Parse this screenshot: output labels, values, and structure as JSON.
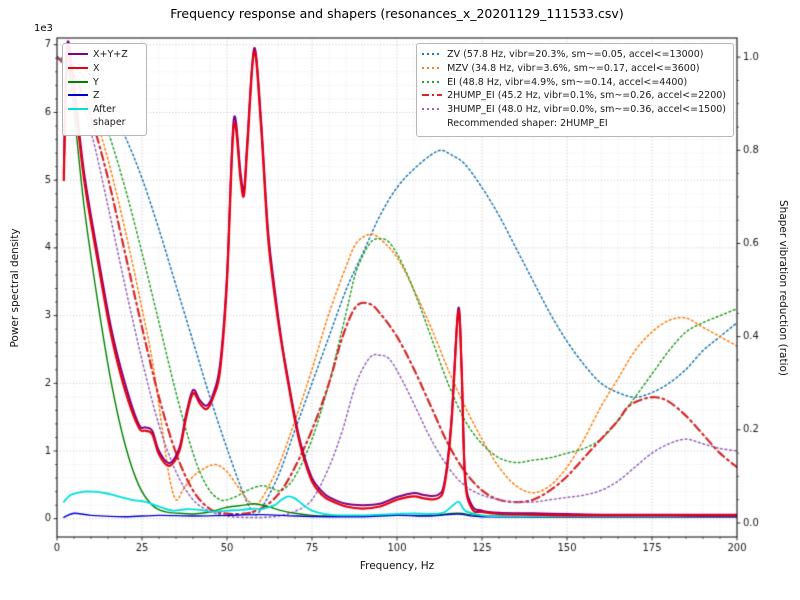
{
  "chart_data": {
    "type": "line",
    "title": "Frequency response and shapers (resonances_x_20201129_111533.csv)",
    "xlabel": "Frequency, Hz",
    "ylabel_left": "Power spectral density",
    "ylabel_right": "Shaper vibration reduction (ratio)",
    "y_left_offset": "1e3",
    "x_range": [
      0,
      200
    ],
    "y_left_range": [
      0,
      7
    ],
    "y_right_range": [
      0,
      1
    ],
    "x_ticks": [
      0,
      25,
      50,
      75,
      100,
      125,
      150,
      175,
      200
    ],
    "y_left_ticks": [
      0,
      1,
      2,
      3,
      4,
      5,
      6,
      7
    ],
    "y_right_ticks": [
      "0.0",
      "0.2",
      "0.4",
      "0.6",
      "0.8",
      "1.0"
    ],
    "grid": true,
    "legend_note": "Recommended shaper: 2HUMP_EI",
    "psd_series": [
      {
        "name": "X+Y+Z",
        "color": "#800080",
        "style": "solid",
        "width": 2,
        "x": [
          2,
          3,
          5,
          8,
          12,
          16,
          20,
          24,
          26,
          28,
          30,
          33,
          36,
          38,
          40,
          42,
          44,
          46,
          48,
          50,
          52,
          54,
          55,
          56,
          58,
          60,
          62,
          64,
          66,
          68,
          70,
          72,
          75,
          78,
          80,
          85,
          90,
          95,
          100,
          105,
          108,
          112,
          114,
          116,
          118,
          119,
          120,
          122,
          125,
          130,
          140,
          150,
          160,
          170,
          180,
          190,
          200
        ],
        "y": [
          5.1,
          7.0,
          6.4,
          5.1,
          3.9,
          2.8,
          2.0,
          1.4,
          1.35,
          1.3,
          1.0,
          0.82,
          1.05,
          1.55,
          1.9,
          1.75,
          1.67,
          1.85,
          2.3,
          3.6,
          5.9,
          5.1,
          4.85,
          5.6,
          6.95,
          5.9,
          4.3,
          3.4,
          2.65,
          2.05,
          1.5,
          1.05,
          0.6,
          0.4,
          0.32,
          0.22,
          0.2,
          0.22,
          0.32,
          0.38,
          0.35,
          0.35,
          0.55,
          1.45,
          3.1,
          2.25,
          0.65,
          0.2,
          0.12,
          0.09,
          0.08,
          0.07,
          0.06,
          0.06,
          0.06,
          0.06,
          0.06
        ]
      },
      {
        "name": "X",
        "color": "#e60012",
        "style": "solid",
        "width": 2.2,
        "x": [
          2,
          3,
          5,
          8,
          12,
          16,
          20,
          24,
          26,
          28,
          30,
          33,
          36,
          38,
          40,
          42,
          44,
          46,
          48,
          50,
          52,
          54,
          55,
          56,
          58,
          60,
          62,
          64,
          66,
          68,
          70,
          72,
          75,
          78,
          80,
          85,
          90,
          95,
          100,
          105,
          108,
          112,
          114,
          116,
          118,
          119,
          120,
          122,
          125,
          130,
          140,
          150,
          160,
          170,
          180,
          190,
          200
        ],
        "y": [
          5.0,
          6.9,
          6.3,
          5.0,
          3.8,
          2.7,
          1.9,
          1.35,
          1.3,
          1.25,
          0.95,
          0.78,
          1.0,
          1.5,
          1.85,
          1.7,
          1.62,
          1.8,
          2.2,
          3.5,
          5.8,
          5.0,
          4.78,
          5.5,
          6.9,
          5.8,
          4.2,
          3.3,
          2.6,
          2.0,
          1.45,
          1.0,
          0.55,
          0.35,
          0.28,
          0.18,
          0.15,
          0.18,
          0.28,
          0.33,
          0.3,
          0.3,
          0.5,
          1.4,
          3.05,
          2.2,
          0.6,
          0.15,
          0.1,
          0.07,
          0.06,
          0.05,
          0.05,
          0.05,
          0.05,
          0.05,
          0.05
        ]
      },
      {
        "name": "Y",
        "color": "#008000",
        "style": "solid",
        "width": 1.4,
        "x": [
          2,
          3,
          5,
          8,
          12,
          16,
          20,
          24,
          28,
          32,
          36,
          40,
          45,
          50,
          55,
          58,
          62,
          66,
          70,
          75,
          80,
          90,
          100,
          110,
          118,
          125,
          140,
          160,
          180,
          200
        ],
        "y": [
          5.0,
          6.6,
          6.0,
          4.6,
          3.2,
          2.0,
          1.1,
          0.5,
          0.2,
          0.1,
          0.08,
          0.07,
          0.1,
          0.17,
          0.2,
          0.22,
          0.18,
          0.12,
          0.08,
          0.05,
          0.04,
          0.04,
          0.05,
          0.05,
          0.08,
          0.04,
          0.03,
          0.03,
          0.03,
          0.03
        ]
      },
      {
        "name": "Z",
        "color": "#0000cc",
        "style": "solid",
        "width": 1.4,
        "x": [
          2,
          5,
          10,
          20,
          30,
          40,
          50,
          60,
          70,
          80,
          90,
          100,
          110,
          118,
          125,
          150,
          175,
          200
        ],
        "y": [
          0.02,
          0.08,
          0.05,
          0.03,
          0.05,
          0.04,
          0.05,
          0.06,
          0.04,
          0.03,
          0.03,
          0.05,
          0.04,
          0.07,
          0.03,
          0.03,
          0.03,
          0.03
        ]
      },
      {
        "name": "After shaper",
        "color": "#00dede",
        "style": "solid",
        "width": 1.8,
        "x": [
          2,
          4,
          6,
          8,
          10,
          14,
          18,
          22,
          26,
          30,
          34,
          38,
          42,
          46,
          50,
          54,
          58,
          60,
          64,
          66,
          68,
          70,
          72,
          75,
          80,
          85,
          90,
          95,
          100,
          105,
          110,
          114,
          118,
          120,
          125,
          130,
          140,
          150,
          160,
          170,
          180,
          190,
          200
        ],
        "y": [
          0.25,
          0.35,
          0.38,
          0.4,
          0.4,
          0.38,
          0.33,
          0.28,
          0.25,
          0.18,
          0.12,
          0.14,
          0.13,
          0.1,
          0.12,
          0.13,
          0.15,
          0.14,
          0.2,
          0.28,
          0.33,
          0.3,
          0.22,
          0.12,
          0.06,
          0.05,
          0.05,
          0.06,
          0.07,
          0.08,
          0.07,
          0.1,
          0.25,
          0.12,
          0.05,
          0.04,
          0.04,
          0.04,
          0.04,
          0.04,
          0.04,
          0.05,
          0.05
        ]
      }
    ],
    "shaper_series": [
      {
        "label": "ZV (57.8 Hz, vibr=20.3%, sm~=0.05, accel<=13000)",
        "color": "#1f77b4",
        "style": "dotted",
        "width": 1.5,
        "x": [
          0,
          5,
          10,
          15,
          20,
          25,
          30,
          35,
          40,
          45,
          50,
          55,
          58,
          60,
          65,
          70,
          75,
          80,
          85,
          90,
          95,
          100,
          105,
          110,
          113,
          116,
          120,
          125,
          130,
          135,
          140,
          145,
          150,
          155,
          160,
          165,
          170,
          175,
          180,
          185,
          190,
          195,
          200
        ],
        "y": [
          1.0,
          0.99,
          0.96,
          0.9,
          0.83,
          0.74,
          0.63,
          0.51,
          0.39,
          0.27,
          0.16,
          0.06,
          0.02,
          0.03,
          0.1,
          0.2,
          0.3,
          0.4,
          0.5,
          0.58,
          0.66,
          0.72,
          0.76,
          0.79,
          0.8,
          0.79,
          0.77,
          0.72,
          0.66,
          0.59,
          0.52,
          0.45,
          0.39,
          0.34,
          0.3,
          0.28,
          0.27,
          0.28,
          0.3,
          0.33,
          0.37,
          0.4,
          0.43
        ]
      },
      {
        "label": "MZV (34.8 Hz, vibr=3.6%, sm~=0.17, accel<=3600)",
        "color": "#ff7f0e",
        "style": "dotted",
        "width": 1.5,
        "x": [
          0,
          5,
          10,
          15,
          20,
          25,
          28,
          31,
          33,
          35,
          37,
          40,
          44,
          47,
          50,
          53,
          56,
          58,
          60,
          65,
          70,
          75,
          80,
          85,
          88,
          92,
          95,
          100,
          105,
          110,
          115,
          120,
          125,
          130,
          135,
          140,
          145,
          150,
          155,
          160,
          165,
          170,
          175,
          180,
          185,
          190,
          195,
          200
        ],
        "y": [
          1.0,
          0.97,
          0.9,
          0.78,
          0.63,
          0.46,
          0.35,
          0.2,
          0.1,
          0.05,
          0.07,
          0.1,
          0.12,
          0.125,
          0.11,
          0.08,
          0.05,
          0.04,
          0.05,
          0.12,
          0.22,
          0.33,
          0.45,
          0.55,
          0.6,
          0.62,
          0.61,
          0.57,
          0.5,
          0.42,
          0.33,
          0.25,
          0.18,
          0.12,
          0.08,
          0.065,
          0.08,
          0.12,
          0.18,
          0.25,
          0.31,
          0.37,
          0.41,
          0.435,
          0.44,
          0.42,
          0.4,
          0.38
        ]
      },
      {
        "label": "EI (48.8 Hz, vibr=4.9%, sm~=0.14, accel<=4400)",
        "color": "#2ca02c",
        "style": "dotted",
        "width": 1.5,
        "x": [
          0,
          5,
          10,
          15,
          20,
          25,
          30,
          35,
          40,
          44,
          48,
          52,
          56,
          60,
          63,
          66,
          70,
          75,
          80,
          85,
          88,
          92,
          95,
          98,
          102,
          106,
          110,
          115,
          120,
          125,
          130,
          135,
          140,
          145,
          150,
          155,
          160,
          165,
          170,
          175,
          180,
          185,
          190,
          195,
          200
        ],
        "y": [
          1.0,
          0.98,
          0.93,
          0.84,
          0.72,
          0.58,
          0.43,
          0.28,
          0.15,
          0.08,
          0.05,
          0.055,
          0.07,
          0.08,
          0.075,
          0.07,
          0.1,
          0.18,
          0.3,
          0.45,
          0.54,
          0.6,
          0.61,
          0.6,
          0.55,
          0.48,
          0.4,
          0.3,
          0.22,
          0.17,
          0.14,
          0.13,
          0.135,
          0.14,
          0.15,
          0.16,
          0.18,
          0.22,
          0.27,
          0.32,
          0.37,
          0.41,
          0.43,
          0.445,
          0.46
        ]
      },
      {
        "label": "2HUMP_EI (45.2 Hz, vibr=0.1%, sm~=0.26, accel<=2200)",
        "color": "#d62728",
        "style": "dashdot",
        "width": 2.2,
        "x": [
          0,
          5,
          10,
          15,
          20,
          25,
          30,
          35,
          40,
          45,
          50,
          55,
          58,
          62,
          66,
          70,
          75,
          80,
          84,
          88,
          92,
          95,
          100,
          105,
          110,
          115,
          120,
          125,
          130,
          135,
          140,
          145,
          150,
          155,
          160,
          165,
          168,
          172,
          176,
          180,
          185,
          190,
          195,
          200
        ],
        "y": [
          1.0,
          0.96,
          0.87,
          0.74,
          0.58,
          0.42,
          0.27,
          0.15,
          0.07,
          0.03,
          0.02,
          0.02,
          0.025,
          0.04,
          0.07,
          0.12,
          0.2,
          0.3,
          0.4,
          0.465,
          0.47,
          0.45,
          0.4,
          0.33,
          0.25,
          0.17,
          0.11,
          0.07,
          0.05,
          0.045,
          0.05,
          0.07,
          0.1,
          0.14,
          0.18,
          0.22,
          0.25,
          0.265,
          0.27,
          0.26,
          0.23,
          0.19,
          0.15,
          0.12
        ]
      },
      {
        "label": "3HUMP_EI (48.0 Hz, vibr=0.0%, sm~=0.36, accel<=1500)",
        "color": "#9467bd",
        "style": "dotted",
        "width": 1.5,
        "x": [
          0,
          5,
          10,
          15,
          20,
          25,
          30,
          35,
          40,
          45,
          50,
          55,
          60,
          65,
          70,
          75,
          80,
          84,
          88,
          92,
          95,
          98,
          102,
          106,
          110,
          115,
          120,
          125,
          130,
          135,
          140,
          145,
          150,
          155,
          160,
          165,
          170,
          175,
          180,
          185,
          190,
          195,
          200
        ],
        "y": [
          1.0,
          0.95,
          0.84,
          0.68,
          0.51,
          0.35,
          0.21,
          0.11,
          0.05,
          0.025,
          0.015,
          0.012,
          0.012,
          0.015,
          0.025,
          0.05,
          0.12,
          0.2,
          0.3,
          0.355,
          0.36,
          0.35,
          0.3,
          0.24,
          0.18,
          0.12,
          0.08,
          0.06,
          0.05,
          0.045,
          0.045,
          0.05,
          0.055,
          0.06,
          0.07,
          0.09,
          0.12,
          0.15,
          0.17,
          0.18,
          0.17,
          0.16,
          0.155
        ]
      }
    ]
  }
}
